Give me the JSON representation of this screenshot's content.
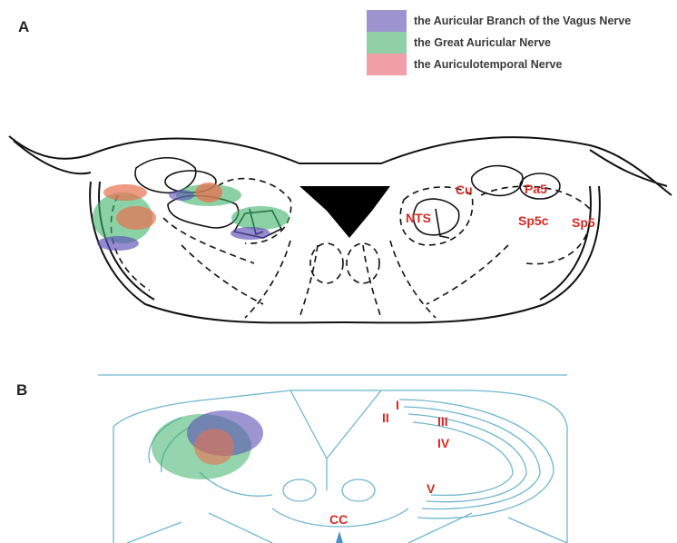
{
  "panels": {
    "a_label": "A",
    "b_label": "B"
  },
  "legend": [
    {
      "label": "the Auricular Branch of the Vagus Nerve",
      "color": "#9d93cf"
    },
    {
      "label": "the Great Auricular Nerve",
      "color": "#8fd0a6"
    },
    {
      "label": "the Auriculotemporal Nerve",
      "color": "#f0a0a6"
    }
  ],
  "panel_a_regions": {
    "cu": "Cu",
    "pa5": "Pa5",
    "nts": "NTS",
    "sp5c": "Sp5c",
    "sp5": "Sp5"
  },
  "panel_b_regions": {
    "i": "I",
    "ii": "II",
    "iii": "III",
    "iv": "IV",
    "v": "V",
    "cc": "CC"
  },
  "colors": {
    "label_red": "#d52a22",
    "outline_blue": "#6fb6cf",
    "vagus": "#5b4fb3",
    "great_auricular": "#3db36a",
    "auriculotemporal": "#e8704f"
  }
}
